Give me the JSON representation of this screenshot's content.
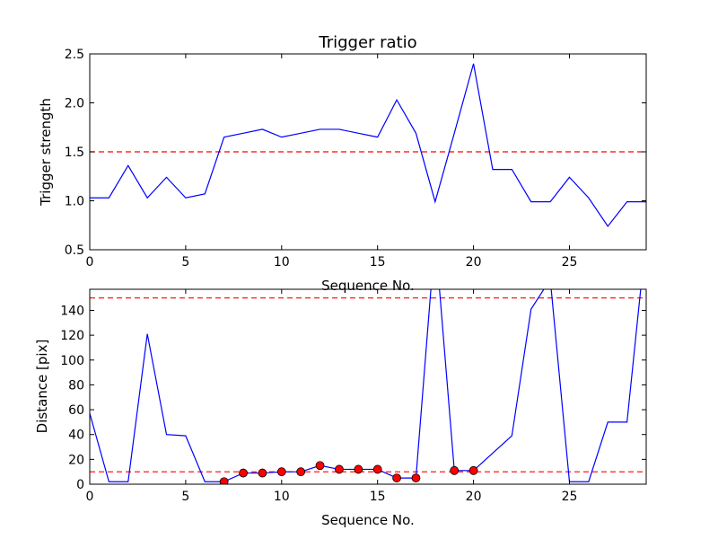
{
  "chart_data": [
    {
      "type": "line",
      "title": "Trigger ratio",
      "xlabel": "Sequence No.",
      "ylabel": "Trigger strength",
      "xlim": [
        0,
        29
      ],
      "ylim": [
        0.5,
        2.5
      ],
      "x_ticks": [
        "0",
        "5",
        "10",
        "15",
        "20",
        "25"
      ],
      "y_ticks": [
        "0.5",
        "1.0",
        "1.5",
        "2.0",
        "2.5"
      ],
      "threshold": 1.5,
      "line_color": "#0000ff",
      "threshold_color": "#ff0000",
      "series": [
        {
          "x": [
            0,
            1,
            2,
            3,
            4,
            5,
            6,
            7,
            8,
            9,
            10,
            11,
            12,
            13,
            14,
            15,
            16,
            17,
            18,
            19,
            20,
            21,
            22,
            23,
            24,
            25,
            26,
            27,
            28,
            29
          ],
          "values": [
            1.03,
            1.03,
            1.36,
            1.03,
            1.24,
            1.03,
            1.07,
            1.65,
            1.69,
            1.73,
            1.65,
            1.69,
            1.73,
            1.73,
            1.69,
            1.65,
            2.03,
            1.69,
            0.99,
            1.69,
            2.4,
            1.32,
            1.32,
            0.99,
            0.99,
            1.24,
            1.03,
            0.74,
            0.99,
            0.99
          ]
        }
      ]
    },
    {
      "type": "line",
      "title": "",
      "xlabel": "Sequence No.",
      "ylabel": "Distance [pix]",
      "xlim": [
        0,
        29
      ],
      "ylim": [
        0,
        157
      ],
      "x_ticks": [
        "0",
        "5",
        "10",
        "15",
        "20",
        "25"
      ],
      "y_ticks": [
        "0",
        "20",
        "40",
        "60",
        "80",
        "100",
        "120",
        "140"
      ],
      "thresholds": [
        10,
        150
      ],
      "line_color": "#0000ff",
      "threshold_color": "#ff0000",
      "marker_color": "#ff0000",
      "series": [
        {
          "x": [
            0,
            1,
            2,
            3,
            4,
            5,
            6,
            7,
            8,
            9,
            10,
            11,
            12,
            13,
            14,
            15,
            16,
            17,
            18,
            19,
            20,
            22,
            23,
            24,
            25,
            26,
            27,
            28,
            29
          ],
          "values": [
            57,
            2,
            2,
            121,
            40,
            39,
            2,
            2,
            9,
            9,
            10,
            10,
            15,
            12,
            12,
            12,
            5,
            5,
            200,
            11,
            11,
            39,
            141,
            165,
            2,
            2,
            50,
            50,
            200
          ]
        }
      ],
      "markers": {
        "x": [
          7,
          8,
          9,
          10,
          11,
          12,
          13,
          14,
          15,
          16,
          17,
          19,
          20
        ],
        "values": [
          2,
          9,
          9,
          10,
          10,
          15,
          12,
          12,
          12,
          5,
          5,
          11,
          11
        ]
      }
    }
  ]
}
